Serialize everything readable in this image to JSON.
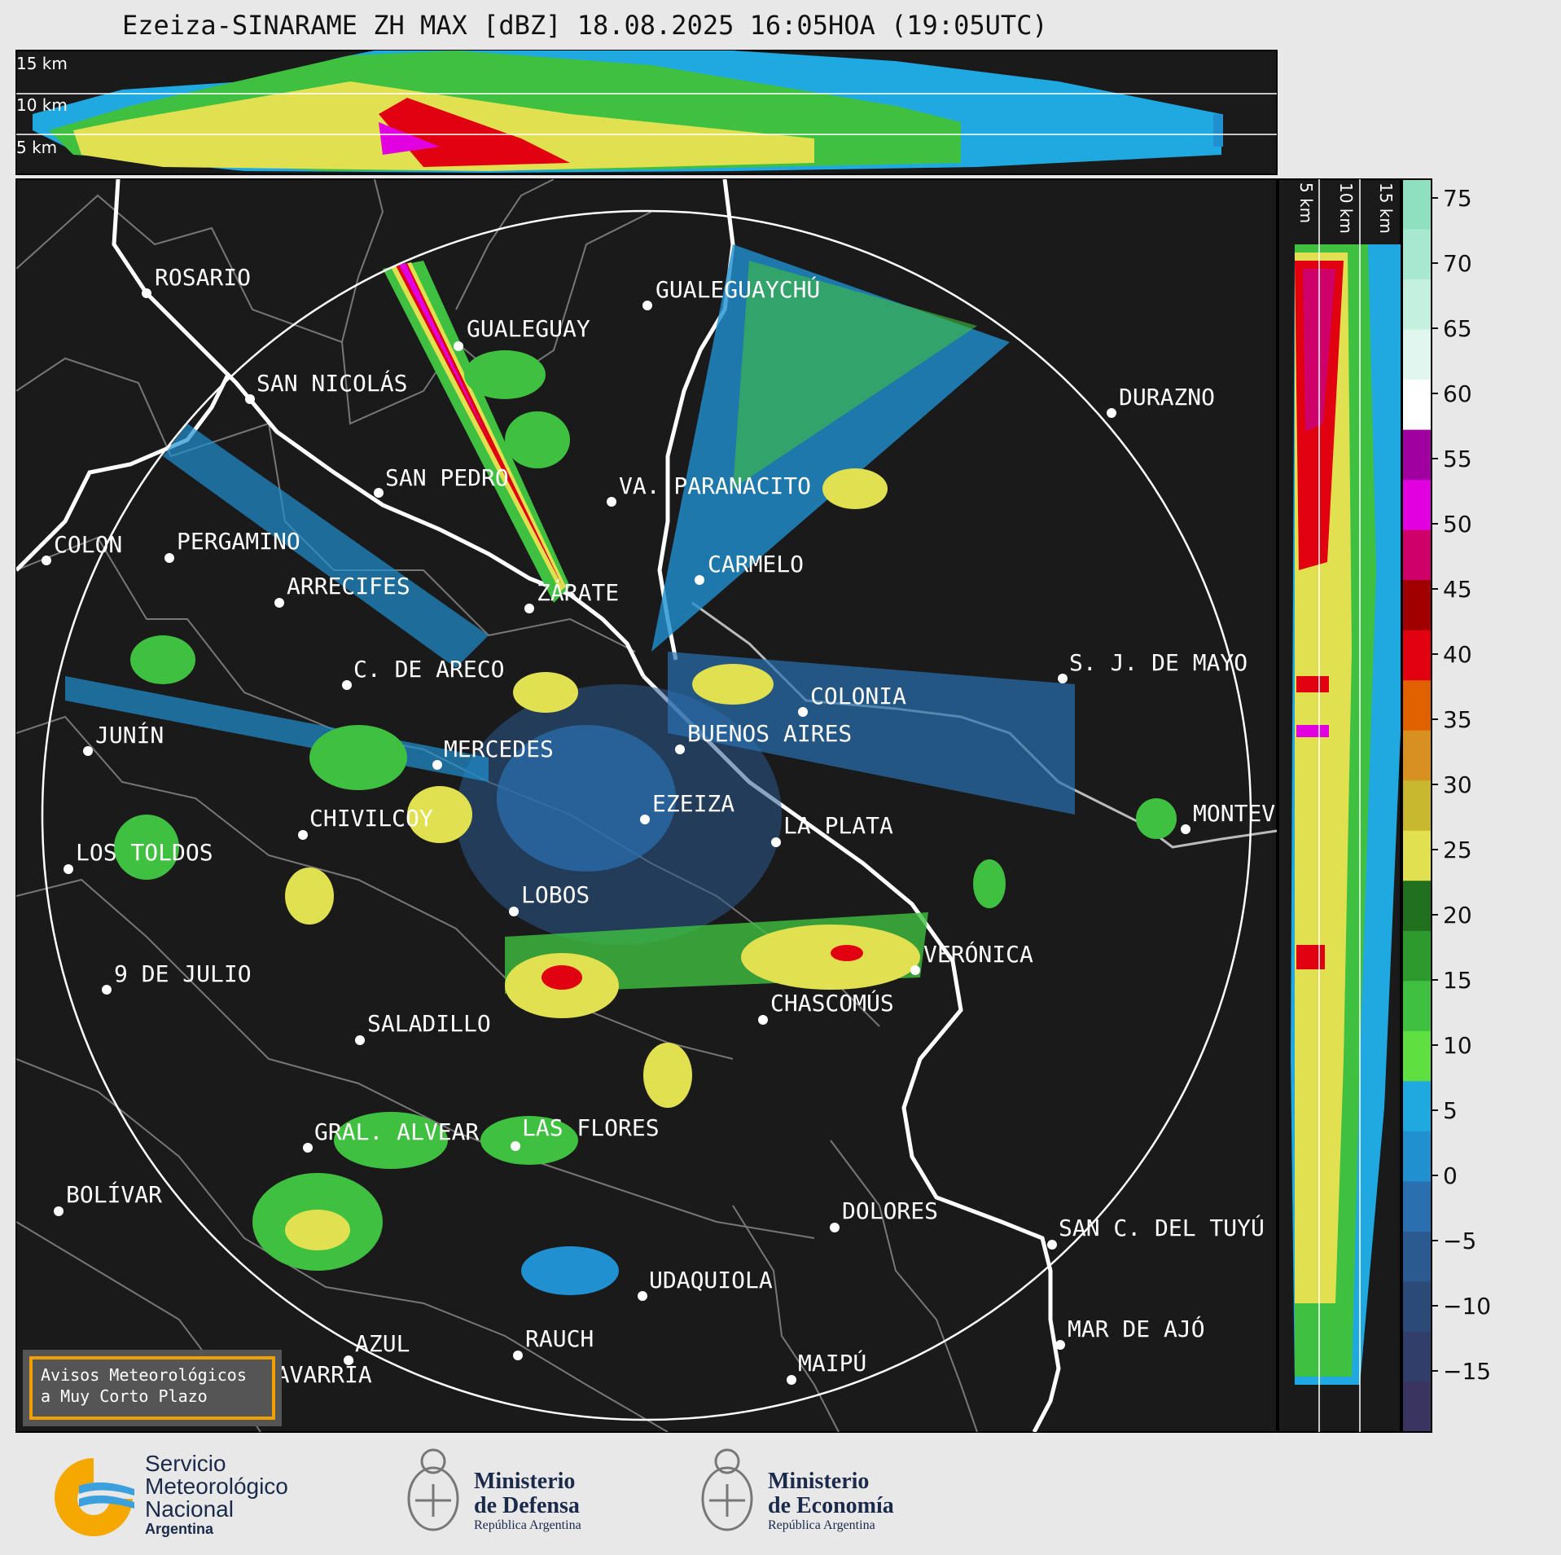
{
  "title": "Ezeiza-SINARAME ZH MAX [dBZ] 18.08.2025 16:05HOA (19:05UTC)",
  "altitude_labels_top": [
    "15 km",
    "10 km",
    "5 km"
  ],
  "altitude_labels_side": [
    "5 km",
    "10 km",
    "15 km"
  ],
  "colorbar": {
    "ticks": [
      "75",
      "70",
      "65",
      "60",
      "55",
      "50",
      "45",
      "40",
      "35",
      "30",
      "25",
      "20",
      "15",
      "10",
      "5",
      "0",
      "−5",
      "−10",
      "−15"
    ],
    "colors": [
      "#8fe0c0",
      "#a8e8d0",
      "#c4f0e0",
      "#e0f6ee",
      "#ffffff",
      "#a000a0",
      "#e000e0",
      "#d0006a",
      "#a00000",
      "#e00010",
      "#e06000",
      "#d89020",
      "#c8b830",
      "#e0e050",
      "#1f6f1f",
      "#2d9a2d",
      "#40c040",
      "#60e040",
      "#20a8e0",
      "#2090d0",
      "#2a70b0",
      "#2a5a90",
      "#2c4a78",
      "#323e6a",
      "#3a3560"
    ]
  },
  "cities": [
    {
      "name": "ROSARIO"
    },
    {
      "name": "GUALEGUAY"
    },
    {
      "name": "GUALEGUAYCHÚ"
    },
    {
      "name": "SAN NICOLÁS"
    },
    {
      "name": "DURAZNO"
    },
    {
      "name": "SAN PEDRO"
    },
    {
      "name": "VA. PARANACITO"
    },
    {
      "name": "COLON"
    },
    {
      "name": "PERGAMINO"
    },
    {
      "name": "CARMELO"
    },
    {
      "name": "ARRECIFES"
    },
    {
      "name": "ZÁRATE"
    },
    {
      "name": "S. J. DE MAYO"
    },
    {
      "name": "C. DE ARECO"
    },
    {
      "name": "COLONIA"
    },
    {
      "name": "JUNÍN"
    },
    {
      "name": "BUENOS AIRES"
    },
    {
      "name": "MERCEDES"
    },
    {
      "name": "EZEIZA"
    },
    {
      "name": "MONTEVIDEO"
    },
    {
      "name": "CHIVILCOY"
    },
    {
      "name": "LA PLATA"
    },
    {
      "name": "LOS TOLDOS"
    },
    {
      "name": "LOBOS"
    },
    {
      "name": "VERÓNICA"
    },
    {
      "name": "9 DE JULIO"
    },
    {
      "name": "CHASCOMÚS"
    },
    {
      "name": "SALADILLO"
    },
    {
      "name": "GRAL. ALVEAR"
    },
    {
      "name": "LAS FLORES"
    },
    {
      "name": "BOLÍVAR"
    },
    {
      "name": "DOLORES"
    },
    {
      "name": "SAN C. DEL TUYÚ"
    },
    {
      "name": "UDAQUIOLA"
    },
    {
      "name": "AZUL"
    },
    {
      "name": "RAUCH"
    },
    {
      "name": "MAR DE AJÓ"
    },
    {
      "name": "OLAVARRÍA"
    },
    {
      "name": "MAIPÚ"
    }
  ],
  "warning": {
    "line1": "Avisos Meteorológicos",
    "line2": "a Muy Corto Plazo"
  },
  "logos": {
    "smn": {
      "line1": "Servicio",
      "line2": "Meteorológico",
      "line3": "Nacional",
      "line4": "Argentina"
    },
    "defensa": {
      "line1": "Ministerio",
      "line2": "de Defensa",
      "line3": "República Argentina"
    },
    "economia": {
      "line1": "Ministerio",
      "line2": "de Economía",
      "line3": "República Argentina"
    }
  }
}
